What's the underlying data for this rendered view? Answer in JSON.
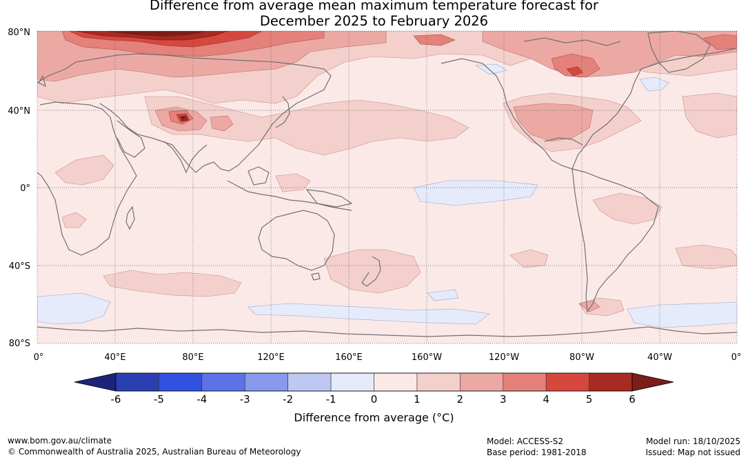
{
  "title": {
    "line1": "Difference from average mean maximum temperature forecast for",
    "line2": "December 2025 to February 2026"
  },
  "map": {
    "lat_labels": [
      "80°N",
      "40°N",
      "0°",
      "40°S",
      "80°S"
    ],
    "lon_labels": [
      "0°",
      "40°E",
      "80°E",
      "120°E",
      "160°E",
      "160°W",
      "120°W",
      "80°W",
      "40°W",
      "0°"
    ]
  },
  "colorbar": {
    "label": "Difference from average (°C)",
    "ticks": [
      "-6",
      "-5",
      "-4",
      "-3",
      "-2",
      "-1",
      "0",
      "1",
      "2",
      "3",
      "4",
      "5",
      "6"
    ],
    "colors": {
      "under": "#1b2478",
      "bins": [
        "#2a3fb2",
        "#3152e0",
        "#5b73e6",
        "#8898ea",
        "#bec8f2",
        "#e6ebfb",
        "#fbe9e7",
        "#f4d0cc",
        "#eca9a4",
        "#e4817a",
        "#d6483e",
        "#a82a22"
      ],
      "over": "#7c1d18"
    }
  },
  "footer": {
    "website": "www.bom.gov.au/climate",
    "copyright": "© Commonwealth of Australia 2025, Australian Bureau of Meteorology",
    "model": "Model: ACCESS-S2",
    "base_period": "Base period: 1981-2018",
    "model_run": "Model run: 18/10/2025",
    "issued": "Issued: Map not issued"
  }
}
